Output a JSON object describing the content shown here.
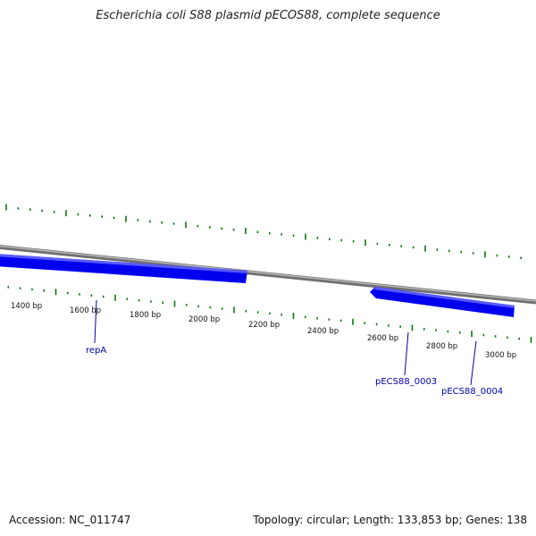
{
  "title": "Escherichia coli S88 plasmid pECOS88, complete sequence",
  "colors": {
    "backbone": "#8a8a8a",
    "gene_fill": "#0000ee",
    "gene_highlight": "#5555ff",
    "tick": "#0a7a0a",
    "gene_label": "#0000aa",
    "ruler_label": "#111111"
  },
  "ruler": {
    "labels": [
      "1400 bp",
      "1600 bp",
      "1800 bp",
      "2000 bp",
      "2200 bp",
      "2400 bp",
      "2600 bp",
      "2800 bp",
      "3000 bp"
    ]
  },
  "genes": [
    {
      "name": "repA"
    },
    {
      "name": "pECS88_0003"
    },
    {
      "name": "pECS88_0004"
    }
  ],
  "footer": {
    "accession": "Accession: NC_011747",
    "summary": "Topology: circular; Length: 133,853 bp; Genes: 138"
  }
}
